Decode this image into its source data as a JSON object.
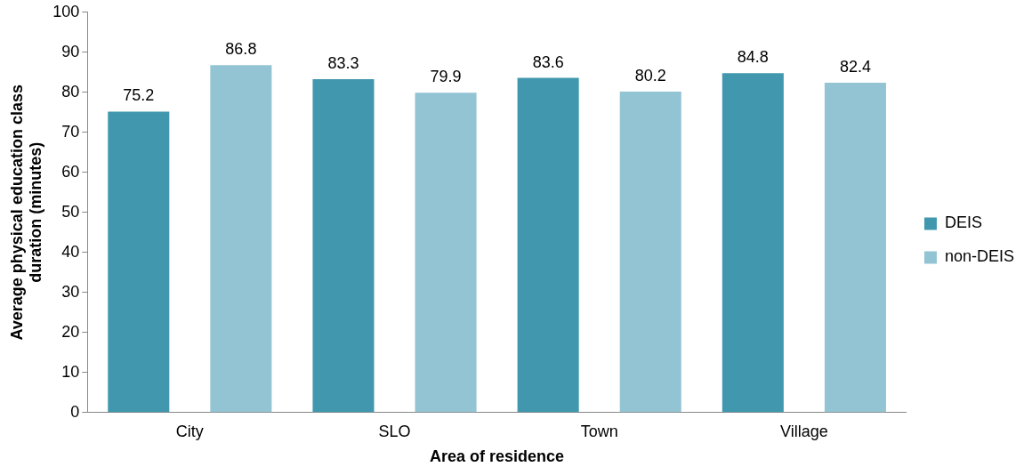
{
  "chart_data": {
    "type": "bar",
    "xlabel": "Area of residence",
    "ylabel": "Average physical education class duration (minutes)",
    "categories": [
      "City",
      "SLO",
      "Town",
      "Village"
    ],
    "series": [
      {
        "name": "DEIS",
        "color": "#4198ae",
        "values": [
          75.2,
          83.3,
          83.6,
          84.8
        ]
      },
      {
        "name": "non-DEIS",
        "color": "#93c4d4",
        "values": [
          86.8,
          79.9,
          80.2,
          82.4
        ]
      }
    ],
    "ylim": [
      0,
      100
    ],
    "yticks": [
      0,
      10,
      20,
      30,
      40,
      50,
      60,
      70,
      80,
      90,
      100
    ],
    "grid": false,
    "legend": "right",
    "data_labels": true
  }
}
